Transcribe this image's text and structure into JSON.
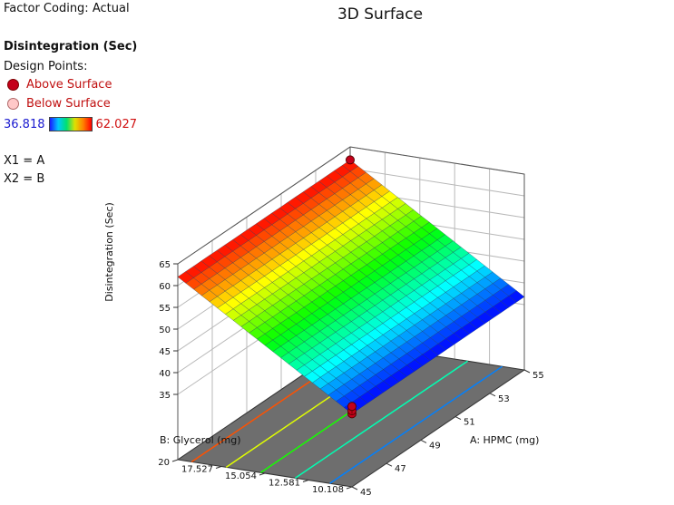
{
  "header": {
    "factor_coding": "Factor Coding: Actual"
  },
  "legend": {
    "response_title": "Disintegration (Sec)",
    "design_points_label": "Design Points:",
    "above_label": "Above Surface",
    "below_label": "Below Surface",
    "colorbar_min": "36.818",
    "colorbar_max": "62.027",
    "x1_eq": "X1 = A",
    "x2_eq": "X2 = B"
  },
  "colors": {
    "above_point": "#c4001a",
    "below_point": "#ffc8c8",
    "floor": "#6e6e6e"
  },
  "chart_data": {
    "type": "surface3d",
    "title": "3D Surface",
    "xlabel": "A: HPMC (mg)",
    "ylabel": "B: Glycerol (mg)",
    "zlabel": "Disintegration (Sec)",
    "xlim": [
      45,
      55
    ],
    "ylim": [
      10.108,
      20
    ],
    "zlim": [
      35,
      65
    ],
    "x_ticks": [
      "45",
      "47",
      "49",
      "51",
      "53",
      "55"
    ],
    "y_ticks": [
      "10.108",
      "12.581",
      "15.054",
      "17.527",
      "20"
    ],
    "z_ticks": [
      "35",
      "40",
      "45",
      "50",
      "55",
      "60",
      "65"
    ],
    "color_range": [
      36.818,
      62.027
    ],
    "surface_corners": [
      {
        "x": 45,
        "y": 10.108,
        "z": 36.8
      },
      {
        "x": 45,
        "y": 20,
        "z": 62.0
      },
      {
        "x": 55,
        "y": 20,
        "z": 62.0
      },
      {
        "x": 55,
        "y": 10.108,
        "z": 36.8
      }
    ],
    "design_points": [
      {
        "x": 45,
        "y": 10.108,
        "z": 36.8,
        "position": "above"
      },
      {
        "x": 45,
        "y": 10.108,
        "z": 37.5,
        "position": "above"
      },
      {
        "x": 45,
        "y": 10.108,
        "z": 38.5,
        "position": "above"
      },
      {
        "x": 55,
        "y": 20,
        "z": 62.0,
        "position": "above"
      }
    ],
    "floor_contour_levels": [
      40,
      45,
      50,
      55,
      60
    ]
  }
}
